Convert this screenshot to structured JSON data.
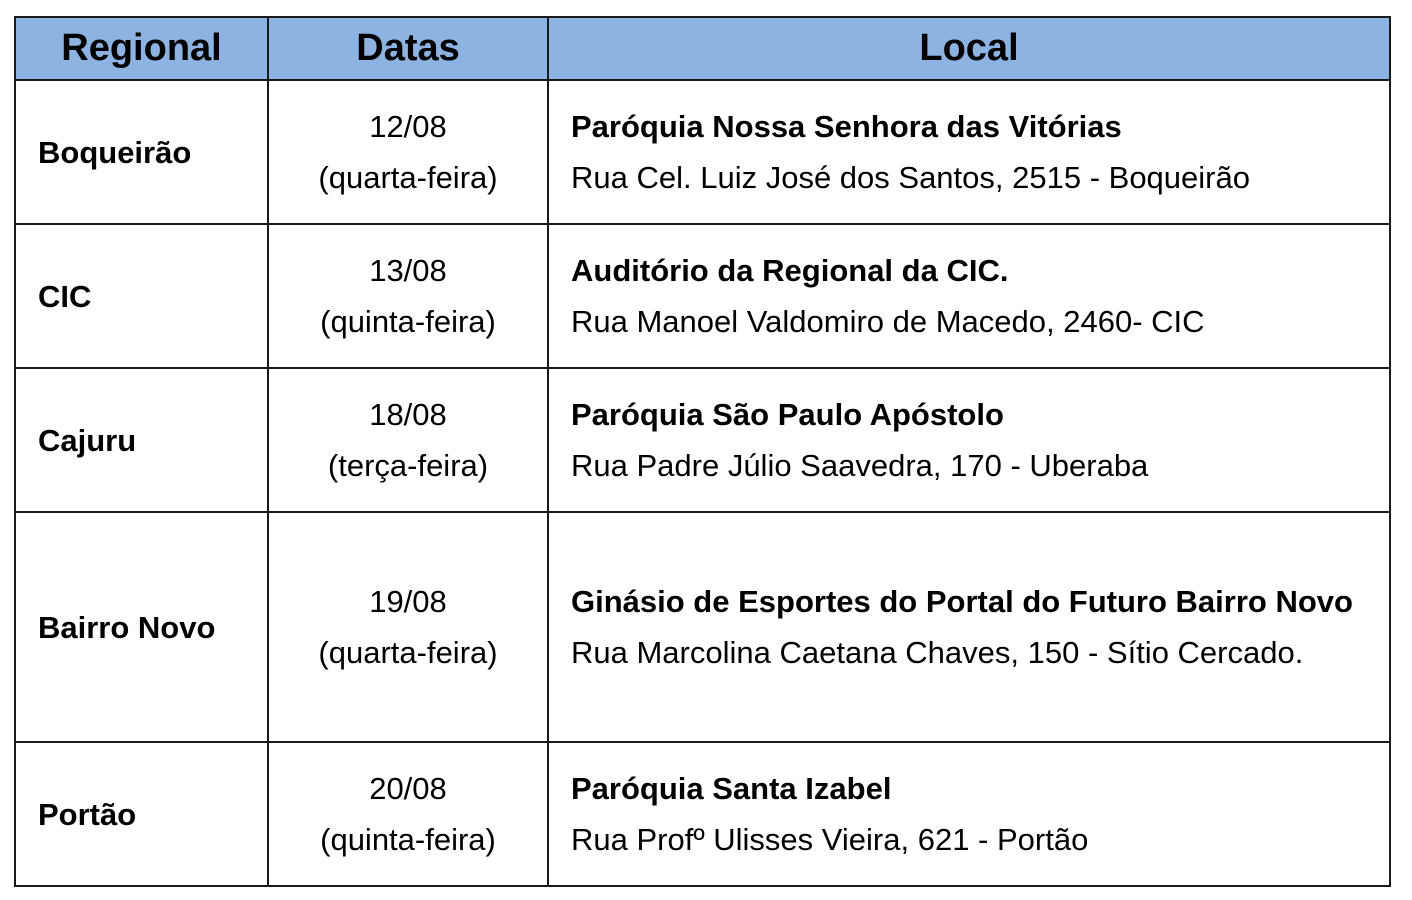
{
  "table": {
    "headers": [
      "Regional",
      "Datas",
      "Local"
    ],
    "header_color": "#8DB3E2",
    "rows": [
      {
        "regional": "Boqueirão",
        "date": "12/08",
        "weekday": "(quarta-feira)",
        "place": "Paróquia Nossa Senhora das Vitórias",
        "address": "Rua Cel. Luiz José dos Santos, 2515 - Boqueirão"
      },
      {
        "regional": "CIC",
        "date": "13/08",
        "weekday": "(quinta-feira)",
        "place": "Auditório da Regional da CIC.",
        "address": "Rua Manoel Valdomiro de Macedo, 2460- CIC"
      },
      {
        "regional": "Cajuru",
        "date": "18/08",
        "weekday": "(terça-feira)",
        "place": "Paróquia São Paulo Apóstolo",
        "address": "Rua Padre Júlio Saavedra, 170 - Uberaba"
      },
      {
        "regional": "Bairro Novo",
        "date": "19/08",
        "weekday": "(quarta-feira)",
        "place": "Ginásio de Esportes do Portal do Futuro Bairro Novo",
        "address": "Rua Marcolina Caetana Chaves, 150 - Sítio Cercado."
      },
      {
        "regional": "Portão",
        "date": "20/08",
        "weekday": "(quinta-feira)",
        "place": "Paróquia Santa Izabel",
        "address": "Rua Profº Ulisses Vieira, 621 - Portão"
      }
    ]
  }
}
